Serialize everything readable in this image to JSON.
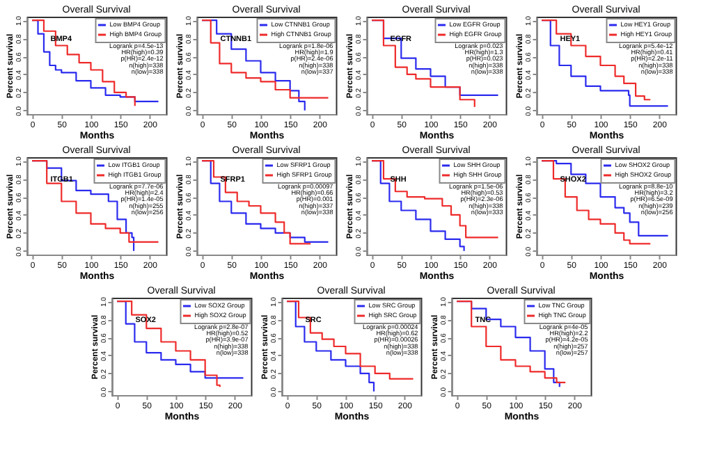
{
  "chart_data": [
    {
      "type": "step",
      "title": "Overall Survival",
      "xlabel": "Months",
      "ylabel": "Percent survival",
      "legend": "top right",
      "xlim": [
        -9,
        228
      ],
      "xticks": [
        0,
        50,
        100,
        150,
        200
      ],
      "ylim": [
        -0.04,
        1.04
      ],
      "yticks": [
        {
          "value": 0,
          "label": "0.0"
        },
        {
          "value": 0.2,
          "label": "0.2"
        },
        {
          "value": 0.4,
          "label": "0.4"
        },
        {
          "value": 0.6,
          "label": "0.6"
        },
        {
          "value": 0.8,
          "label": "0.8"
        },
        {
          "value": 1,
          "label": "1.0"
        }
      ],
      "annotations": [
        "BMP4",
        "Logrank p=4.5e-13",
        "HR(high)=0.39",
        "p(HR)=2.4e-12",
        "n(high)=338",
        "n(low)=338"
      ],
      "series": [
        {
          "name": "Low BMP4 Group",
          "color": "#2a2aee",
          "x": [
            0,
            10,
            20,
            30,
            40,
            50,
            75,
            100,
            125,
            150,
            175,
            215
          ],
          "values": [
            1,
            0.85,
            0.65,
            0.5,
            0.45,
            0.42,
            0.33,
            0.25,
            0.17,
            0.15,
            0.1,
            0.1
          ]
        },
        {
          "name": "High BMP4 Group",
          "color": "#ee2a2a",
          "x": [
            0,
            20,
            40,
            60,
            80,
            100,
            120,
            140,
            160,
            175
          ],
          "values": [
            1,
            0.88,
            0.72,
            0.62,
            0.53,
            0.45,
            0.32,
            0.2,
            0.15,
            0.05
          ]
        }
      ]
    },
    {
      "type": "step",
      "title": "Overall Survival",
      "xlabel": "Months",
      "ylabel": "Percent survival",
      "legend": "top right",
      "xlim": [
        -9,
        228
      ],
      "xticks": [
        0,
        50,
        100,
        150,
        200
      ],
      "ylim": [
        -0.04,
        1.04
      ],
      "yticks": [
        {
          "value": 0,
          "label": "0.0"
        },
        {
          "value": 0.2,
          "label": "0.2"
        },
        {
          "value": 0.4,
          "label": "0.4"
        },
        {
          "value": 0.6,
          "label": "0.6"
        },
        {
          "value": 0.8,
          "label": "0.8"
        },
        {
          "value": 1,
          "label": "1.0"
        }
      ],
      "annotations": [
        "CTNNB1",
        "Logrank p=1.8e-06",
        "HR(high)=1.9",
        "p(HR)=2.4e-06",
        "n(high)=338",
        "n(low)=337"
      ],
      "series": [
        {
          "name": "Low CTNNB1 Group",
          "color": "#2a2aee",
          "x": [
            0,
            25,
            50,
            75,
            100,
            125,
            150,
            165,
            175
          ],
          "values": [
            1,
            0.85,
            0.68,
            0.55,
            0.42,
            0.33,
            0.22,
            0.1,
            0.0
          ]
        },
        {
          "name": "High CTNNB1 Group",
          "color": "#ee2a2a",
          "x": [
            0,
            15,
            30,
            50,
            75,
            100,
            125,
            150,
            215
          ],
          "values": [
            1,
            0.75,
            0.52,
            0.42,
            0.36,
            0.32,
            0.23,
            0.14,
            0.14
          ]
        }
      ]
    },
    {
      "type": "step",
      "title": "Overall Survival",
      "xlabel": "Months",
      "ylabel": "Percent survival",
      "legend": "top right",
      "xlim": [
        -9,
        228
      ],
      "xticks": [
        0,
        50,
        100,
        150,
        200
      ],
      "ylim": [
        -0.04,
        1.04
      ],
      "yticks": [
        {
          "value": 0,
          "label": "0.0"
        },
        {
          "value": 0.2,
          "label": "0.2"
        },
        {
          "value": 0.4,
          "label": "0.4"
        },
        {
          "value": 0.6,
          "label": "0.6"
        },
        {
          "value": 0.8,
          "label": "0.8"
        },
        {
          "value": 1,
          "label": "1.0"
        }
      ],
      "annotations": [
        "EGFR",
        "Logrank p=0.023",
        "HR(high)=1.3",
        "p(HR)=0.023",
        "n(high)=338",
        "n(low)=338"
      ],
      "series": [
        {
          "name": "Low EGFR Group",
          "color": "#2a2aee",
          "x": [
            0,
            20,
            50,
            75,
            100,
            125,
            150,
            215
          ],
          "values": [
            1,
            0.8,
            0.58,
            0.46,
            0.38,
            0.26,
            0.17,
            0.17
          ]
        },
        {
          "name": "High EGFR Group",
          "color": "#ee2a2a",
          "x": [
            0,
            20,
            40,
            60,
            75,
            100,
            130,
            150,
            175
          ],
          "values": [
            1,
            0.72,
            0.48,
            0.4,
            0.35,
            0.26,
            0.26,
            0.12,
            0.04
          ]
        }
      ]
    },
    {
      "type": "step",
      "title": "Overall Survival",
      "xlabel": "Months",
      "ylabel": "Percent survival",
      "legend": "top right",
      "xlim": [
        -9,
        228
      ],
      "xticks": [
        0,
        50,
        100,
        150,
        200
      ],
      "ylim": [
        -0.04,
        1.04
      ],
      "yticks": [
        {
          "value": 0,
          "label": "0.0"
        },
        {
          "value": 0.2,
          "label": "0.2"
        },
        {
          "value": 0.4,
          "label": "0.4"
        },
        {
          "value": 0.6,
          "label": "0.6"
        },
        {
          "value": 0.8,
          "label": "0.8"
        },
        {
          "value": 1,
          "label": "1.0"
        }
      ],
      "annotations": [
        "HEY1",
        "Logrank p=5.4e-12",
        "HR(high)=0.41",
        "p(HR)=2.2e-11",
        "n(high)=338",
        "n(low)=338"
      ],
      "series": [
        {
          "name": "Low HEY1 Group",
          "color": "#2a2aee",
          "x": [
            0,
            15,
            30,
            50,
            75,
            100,
            125,
            148,
            150,
            215
          ],
          "values": [
            1,
            0.72,
            0.5,
            0.38,
            0.27,
            0.22,
            0.22,
            0.17,
            0.05,
            0.05
          ]
        },
        {
          "name": "High HEY1 Group",
          "color": "#ee2a2a",
          "x": [
            0,
            25,
            50,
            75,
            100,
            125,
            140,
            160,
            175,
            185
          ],
          "values": [
            1,
            0.85,
            0.72,
            0.6,
            0.5,
            0.38,
            0.3,
            0.16,
            0.12,
            0.12
          ]
        }
      ]
    },
    {
      "type": "step",
      "title": "Overall Survival",
      "xlabel": "Months",
      "ylabel": "Percent survival",
      "legend": "top right",
      "xlim": [
        -9,
        228
      ],
      "xticks": [
        0,
        50,
        100,
        150,
        200
      ],
      "ylim": [
        -0.04,
        1.04
      ],
      "yticks": [
        {
          "value": 0,
          "label": "0.0"
        },
        {
          "value": 0.2,
          "label": "0.2"
        },
        {
          "value": 0.4,
          "label": "0.4"
        },
        {
          "value": 0.6,
          "label": "0.6"
        },
        {
          "value": 0.8,
          "label": "0.8"
        },
        {
          "value": 1,
          "label": "1.0"
        }
      ],
      "annotations": [
        "ITGB1",
        "Logrank p=7.7e-06",
        "HR(high)=2.4",
        "p(HR)=1.4e-05",
        "n(high)=255",
        "n(low)=256"
      ],
      "series": [
        {
          "name": "Low ITGB1 Group",
          "color": "#2a2aee",
          "x": [
            0,
            25,
            50,
            75,
            100,
            130,
            145,
            160,
            170,
            173
          ],
          "values": [
            1,
            0.92,
            0.78,
            0.67,
            0.63,
            0.55,
            0.35,
            0.2,
            0.15,
            0.0
          ]
        },
        {
          "name": "High ITGB1 Group",
          "color": "#ee2a2a",
          "x": [
            0,
            25,
            50,
            75,
            100,
            125,
            150,
            165,
            215
          ],
          "values": [
            1,
            0.75,
            0.55,
            0.42,
            0.3,
            0.25,
            0.2,
            0.1,
            0.1
          ]
        }
      ]
    },
    {
      "type": "step",
      "title": "Overall Survival",
      "xlabel": "Months",
      "ylabel": "Percent survival",
      "legend": "top right",
      "xlim": [
        -9,
        228
      ],
      "xticks": [
        0,
        50,
        100,
        150,
        200
      ],
      "ylim": [
        -0.04,
        1.04
      ],
      "yticks": [
        {
          "value": 0,
          "label": "0.0"
        },
        {
          "value": 0.2,
          "label": "0.2"
        },
        {
          "value": 0.4,
          "label": "0.4"
        },
        {
          "value": 0.6,
          "label": "0.6"
        },
        {
          "value": 0.8,
          "label": "0.8"
        },
        {
          "value": 1,
          "label": "1.0"
        }
      ],
      "annotations": [
        "SFRP1",
        "Logrank p=0.00097",
        "HR(high)=0.66",
        "p(HR)=0.001",
        "n(high)=337",
        "n(low)=338"
      ],
      "series": [
        {
          "name": "Low SFRP1 Group",
          "color": "#2a2aee",
          "x": [
            0,
            15,
            30,
            50,
            75,
            100,
            125,
            150,
            175,
            215
          ],
          "values": [
            1,
            0.75,
            0.55,
            0.42,
            0.3,
            0.25,
            0.2,
            0.15,
            0.1,
            0.1
          ]
        },
        {
          "name": "High SFRP1 Group",
          "color": "#ee2a2a",
          "x": [
            0,
            20,
            40,
            60,
            80,
            100,
            125,
            140,
            150,
            185
          ],
          "values": [
            1,
            0.82,
            0.65,
            0.55,
            0.5,
            0.42,
            0.32,
            0.2,
            0.08,
            0.08
          ]
        }
      ]
    },
    {
      "type": "step",
      "title": "Overall Survival",
      "xlabel": "Months",
      "ylabel": "Percent survival",
      "legend": "top right",
      "xlim": [
        -9,
        228
      ],
      "xticks": [
        0,
        50,
        100,
        150,
        200
      ],
      "ylim": [
        -0.04,
        1.04
      ],
      "yticks": [
        {
          "value": 0,
          "label": "0.0"
        },
        {
          "value": 0.2,
          "label": "0.2"
        },
        {
          "value": 0.4,
          "label": "0.4"
        },
        {
          "value": 0.6,
          "label": "0.6"
        },
        {
          "value": 0.8,
          "label": "0.8"
        },
        {
          "value": 1,
          "label": "1.0"
        }
      ],
      "annotations": [
        "SHH",
        "Logrank p=1.5e-06",
        "HR(high)=0.53",
        "p(HR)=2.3e-06",
        "n(high)=338",
        "n(low)=333"
      ],
      "series": [
        {
          "name": "Low SHH Group",
          "color": "#2a2aee",
          "x": [
            0,
            15,
            30,
            50,
            75,
            100,
            125,
            150,
            157
          ],
          "values": [
            1,
            0.75,
            0.55,
            0.45,
            0.35,
            0.22,
            0.13,
            0.05,
            0.0
          ]
        },
        {
          "name": "High SHH Group",
          "color": "#ee2a2a",
          "x": [
            0,
            20,
            40,
            60,
            90,
            120,
            135,
            150,
            160,
            215
          ],
          "values": [
            1,
            0.8,
            0.66,
            0.6,
            0.58,
            0.5,
            0.4,
            0.28,
            0.15,
            0.15
          ]
        }
      ]
    },
    {
      "type": "step",
      "title": "Overall Survival",
      "xlabel": "Months",
      "ylabel": "Percent survival",
      "legend": "top right",
      "xlim": [
        -9,
        228
      ],
      "xticks": [
        0,
        50,
        100,
        150,
        200
      ],
      "ylim": [
        -0.04,
        1.04
      ],
      "yticks": [
        {
          "value": 0,
          "label": "0.0"
        },
        {
          "value": 0.2,
          "label": "0.2"
        },
        {
          "value": 0.4,
          "label": "0.4"
        },
        {
          "value": 0.6,
          "label": "0.6"
        },
        {
          "value": 0.8,
          "label": "0.8"
        },
        {
          "value": 1,
          "label": "1.0"
        }
      ],
      "annotations": [
        "SHOX2",
        "Logrank p=8.8e-10",
        "HR(high)=3.2",
        "p(HR)=6.5e-09",
        "n(high)=239",
        "n(low)=256"
      ],
      "series": [
        {
          "name": "Low SHOX2 Group",
          "color": "#2a2aee",
          "x": [
            0,
            25,
            50,
            75,
            100,
            125,
            140,
            150,
            165,
            215
          ],
          "values": [
            1,
            0.97,
            0.85,
            0.75,
            0.6,
            0.48,
            0.42,
            0.32,
            0.17,
            0.17
          ]
        },
        {
          "name": "High SHOX2 Group",
          "color": "#ee2a2a",
          "x": [
            0,
            20,
            40,
            60,
            80,
            100,
            125,
            140,
            150,
            185
          ],
          "values": [
            1,
            0.8,
            0.6,
            0.45,
            0.35,
            0.3,
            0.2,
            0.12,
            0.08,
            0.08
          ]
        }
      ]
    },
    {
      "type": "step",
      "title": "Overall Survival",
      "xlabel": "Months",
      "ylabel": "Percent survival",
      "legend": "top right",
      "xlim": [
        -9,
        228
      ],
      "xticks": [
        0,
        50,
        100,
        150,
        200
      ],
      "ylim": [
        -0.04,
        1.04
      ],
      "yticks": [
        {
          "value": 0,
          "label": "0.0"
        },
        {
          "value": 0.2,
          "label": "0.2"
        },
        {
          "value": 0.4,
          "label": "0.4"
        },
        {
          "value": 0.6,
          "label": "0.6"
        },
        {
          "value": 0.8,
          "label": "0.8"
        },
        {
          "value": 1,
          "label": "1.0"
        }
      ],
      "annotations": [
        "SOX2",
        "Logrank p=2.8e-07",
        "HR(high)=0.52",
        "p(HR)=3.9e-07",
        "n(high)=338",
        "n(low)=338"
      ],
      "series": [
        {
          "name": "Low SOX2 Group",
          "color": "#2a2aee",
          "x": [
            0,
            15,
            30,
            50,
            75,
            100,
            125,
            150,
            215
          ],
          "values": [
            1,
            0.75,
            0.55,
            0.43,
            0.35,
            0.3,
            0.22,
            0.15,
            0.15
          ]
        },
        {
          "name": "High SOX2 Group",
          "color": "#ee2a2a",
          "x": [
            0,
            25,
            50,
            75,
            100,
            125,
            150,
            170,
            175
          ],
          "values": [
            1,
            0.85,
            0.7,
            0.55,
            0.45,
            0.35,
            0.18,
            0.07,
            0.05
          ]
        }
      ]
    },
    {
      "type": "step",
      "title": "Overall Survival",
      "xlabel": "Months",
      "ylabel": "Percent survival",
      "legend": "top right",
      "xlim": [
        -9,
        228
      ],
      "xticks": [
        0,
        50,
        100,
        150,
        200
      ],
      "ylim": [
        -0.04,
        1.04
      ],
      "yticks": [
        {
          "value": 0,
          "label": "0.0"
        },
        {
          "value": 0.2,
          "label": "0.2"
        },
        {
          "value": 0.4,
          "label": "0.4"
        },
        {
          "value": 0.6,
          "label": "0.6"
        },
        {
          "value": 0.8,
          "label": "0.8"
        },
        {
          "value": 1,
          "label": "1.0"
        }
      ],
      "annotations": [
        "SRC",
        "Logrank p=0.00024",
        "HR(high)=0.62",
        "p(HR)=0.00026",
        "n(high)=338",
        "n(low)=338"
      ],
      "series": [
        {
          "name": "Low SRC Group",
          "color": "#2a2aee",
          "x": [
            0,
            15,
            30,
            50,
            75,
            100,
            125,
            140,
            148
          ],
          "values": [
            1,
            0.72,
            0.55,
            0.45,
            0.35,
            0.28,
            0.2,
            0.1,
            0.0
          ]
        },
        {
          "name": "High SRC Group",
          "color": "#ee2a2a",
          "x": [
            0,
            20,
            40,
            60,
            80,
            100,
            125,
            150,
            175,
            215
          ],
          "values": [
            1,
            0.82,
            0.65,
            0.58,
            0.5,
            0.42,
            0.28,
            0.2,
            0.14,
            0.14
          ]
        }
      ]
    },
    {
      "type": "step",
      "title": "Overall Survival",
      "xlabel": "Months",
      "ylabel": "Percent survival",
      "legend": "top right",
      "xlim": [
        -9,
        228
      ],
      "xticks": [
        0,
        50,
        100,
        150,
        200
      ],
      "ylim": [
        -0.04,
        1.04
      ],
      "yticks": [
        {
          "value": 0,
          "label": "0.0"
        },
        {
          "value": 0.2,
          "label": "0.2"
        },
        {
          "value": 0.4,
          "label": "0.4"
        },
        {
          "value": 0.6,
          "label": "0.6"
        },
        {
          "value": 0.8,
          "label": "0.8"
        },
        {
          "value": 1,
          "label": "1.0"
        }
      ],
      "annotations": [
        "TNC",
        "Logrank p=4e-05",
        "HR(high)=2.2",
        "p(HR)=4.2e-05",
        "n(high)=257",
        "n(low)=257"
      ],
      "series": [
        {
          "name": "Low TNC Group",
          "color": "#2a2aee",
          "x": [
            0,
            25,
            50,
            75,
            100,
            125,
            150,
            165,
            175
          ],
          "values": [
            1,
            0.92,
            0.8,
            0.72,
            0.6,
            0.45,
            0.25,
            0.1,
            0.05
          ]
        },
        {
          "name": "High TNC Group",
          "color": "#ee2a2a",
          "x": [
            0,
            25,
            50,
            75,
            100,
            125,
            150,
            170,
            185
          ],
          "values": [
            1,
            0.72,
            0.5,
            0.35,
            0.28,
            0.22,
            0.15,
            0.1,
            0.1
          ]
        }
      ]
    }
  ]
}
